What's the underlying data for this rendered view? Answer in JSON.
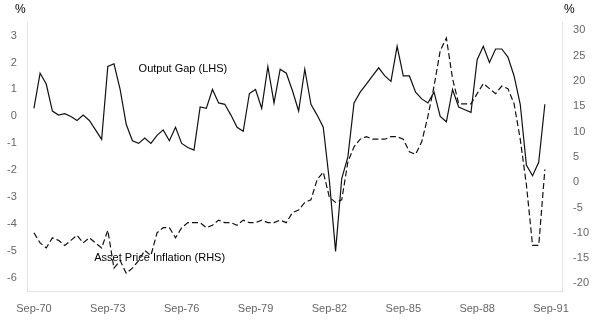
{
  "chart_data": {
    "type": "line",
    "ylabel": "%",
    "y2label": "%",
    "grid": false,
    "xlim": [
      1970.5,
      1992.2
    ],
    "xticks": [
      {
        "value": 1970.75,
        "label": "Sep-70"
      },
      {
        "value": 1973.75,
        "label": "Sep-73"
      },
      {
        "value": 1976.75,
        "label": "Sep-76"
      },
      {
        "value": 1979.75,
        "label": "Sep-79"
      },
      {
        "value": 1982.75,
        "label": "Sep-82"
      },
      {
        "value": 1985.75,
        "label": "Sep-85"
      },
      {
        "value": 1988.75,
        "label": "Sep-88"
      },
      {
        "value": 1991.75,
        "label": "Sep-91"
      }
    ],
    "ylim": [
      -6.5,
      3.5
    ],
    "yticks": [
      -6,
      -5,
      -4,
      -3,
      -2,
      -1,
      0,
      1,
      2,
      3
    ],
    "y2lim": [
      -21.67,
      31.67
    ],
    "y2ticks": [
      -20,
      -15,
      -10,
      -5,
      0,
      5,
      10,
      15,
      20,
      25,
      30
    ],
    "x": [
      1970.75,
      1971.0,
      1971.25,
      1971.5,
      1971.75,
      1972.0,
      1972.25,
      1972.5,
      1972.75,
      1973.0,
      1973.25,
      1973.5,
      1973.75,
      1974.0,
      1974.25,
      1974.5,
      1974.75,
      1975.0,
      1975.25,
      1975.5,
      1975.75,
      1976.0,
      1976.25,
      1976.5,
      1976.75,
      1977.0,
      1977.25,
      1977.5,
      1977.75,
      1978.0,
      1978.25,
      1978.5,
      1978.75,
      1979.0,
      1979.25,
      1979.5,
      1979.75,
      1980.0,
      1980.25,
      1980.5,
      1980.75,
      1981.0,
      1981.25,
      1981.5,
      1981.75,
      1982.0,
      1982.25,
      1982.5,
      1982.75,
      1983.0,
      1983.25,
      1983.5,
      1983.75,
      1984.0,
      1984.25,
      1984.5,
      1984.75,
      1985.0,
      1985.25,
      1985.5,
      1985.75,
      1986.0,
      1986.25,
      1986.5,
      1986.75,
      1987.0,
      1987.25,
      1987.5,
      1987.75,
      1988.0,
      1988.25,
      1988.5,
      1988.75,
      1989.0,
      1989.25,
      1989.5,
      1989.75,
      1990.0,
      1990.25,
      1990.5,
      1990.75,
      1991.0,
      1991.25,
      1991.5
    ],
    "series": [
      {
        "color": "#111111",
        "line_style": "solid",
        "axis": "y",
        "values": [
          0.3,
          1.6,
          1.2,
          0.2,
          0.05,
          0.1,
          0.0,
          -0.15,
          0.05,
          -0.15,
          -0.5,
          -0.85,
          1.85,
          1.95,
          1.0,
          -0.3,
          -0.9,
          -1.0,
          -0.8,
          -1.0,
          -0.7,
          -0.5,
          -0.9,
          -0.4,
          -1.0,
          -1.15,
          -1.25,
          0.35,
          0.3,
          1.0,
          0.5,
          0.45,
          0.05,
          -0.4,
          -0.55,
          0.85,
          1.0,
          0.3,
          1.85,
          0.5,
          1.75,
          1.6,
          0.95,
          0.2,
          1.75,
          0.45,
          0.05,
          -0.4,
          -2.4,
          -5.0,
          -2.3,
          -1.5,
          0.5,
          0.9,
          1.2,
          1.5,
          1.8,
          1.5,
          1.3,
          2.6,
          1.5,
          1.5,
          0.9,
          0.65,
          0.5,
          0.9,
          0.0,
          -0.2,
          1.0,
          0.35,
          0.25,
          0.15,
          2.1,
          2.6,
          2.0,
          2.5,
          2.5,
          2.2,
          1.5,
          0.45,
          -1.8,
          -2.2,
          -1.7,
          0.45
        ]
      },
      {
        "color": "#111111",
        "line_style": "dashed",
        "axis": "y2",
        "values": [
          -10.0,
          -12.0,
          -13.0,
          -11.0,
          -11.5,
          -12.5,
          -11.5,
          -10.5,
          -12.0,
          -11.0,
          -12.0,
          -13.0,
          -9.5,
          -17.0,
          -15.5,
          -18.0,
          -17.0,
          -15.5,
          -13.5,
          -14.5,
          -10.0,
          -9.0,
          -9.0,
          -11.0,
          -9.0,
          -8.0,
          -8.0,
          -8.0,
          -9.0,
          -8.5,
          -7.5,
          -8.0,
          -8.0,
          -8.5,
          -7.5,
          -8.0,
          -8.0,
          -7.5,
          -8.0,
          -8.0,
          -7.5,
          -8.0,
          -6.0,
          -5.5,
          -4.0,
          -3.5,
          0.5,
          2.0,
          -3.0,
          -4.0,
          -3.5,
          4.0,
          7.0,
          8.5,
          9.0,
          8.5,
          8.5,
          8.5,
          9.0,
          9.0,
          8.5,
          6.0,
          5.5,
          8.0,
          13.0,
          19.0,
          26.0,
          28.5,
          20.5,
          15.5,
          15.5,
          15.5,
          17.5,
          19.5,
          18.5,
          17.5,
          19.0,
          18.5,
          15.5,
          8.5,
          -0.5,
          -12.5,
          -12.5,
          2.5
        ]
      }
    ],
    "annotations": [
      {
        "text": "Output Gap (LHS)",
        "x": 1975.0,
        "y": 1.75
      },
      {
        "text": "Asset Price Inflation (RHS)",
        "x": 1973.2,
        "y": -5.25
      }
    ]
  }
}
